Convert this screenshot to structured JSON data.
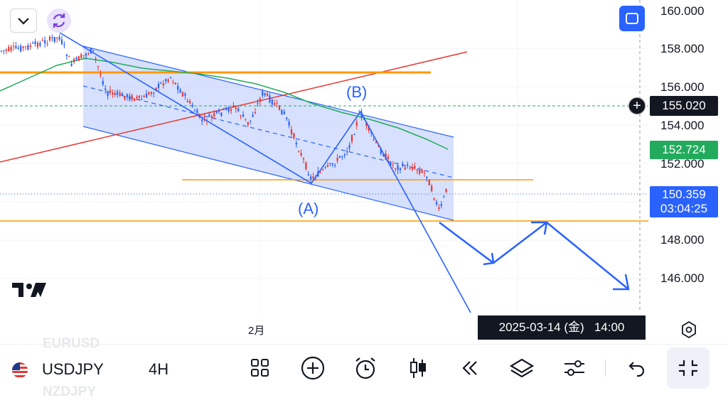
{
  "chart": {
    "symbol": "USDJPY",
    "interval": "4H",
    "price_axis_labels": [
      "160.000",
      "158.000",
      "156.000",
      "154.000",
      "152.000",
      "148.000",
      "146.000"
    ],
    "crosshair_price": "155.020",
    "ma_value": "152.724",
    "last_price": "150.359",
    "countdown": "03:04:25",
    "x_axis_label": "2月",
    "date_tooltip": "2025-03-14 (金)   14:00",
    "wave_label_a": "(A)",
    "wave_label_b": "(B)",
    "colors": {
      "up": "#e53935",
      "down": "#2962ff",
      "channel_fill": "#c9d6fb",
      "orange": "#ff9800",
      "red_trend": "#e53935",
      "ma": "#22ab5c",
      "blue_line": "#2962ff"
    }
  },
  "watchlist_ghost": {
    "above": "EURUSD",
    "below": "NZDJPY"
  },
  "toolbar": {
    "icons": [
      "grid-icon",
      "add-circle-icon",
      "alarm-clock-icon",
      "candles-icon",
      "rewind-icon",
      "layers-icon",
      "sliders-icon",
      "undo-icon",
      "collapse-icon"
    ]
  }
}
